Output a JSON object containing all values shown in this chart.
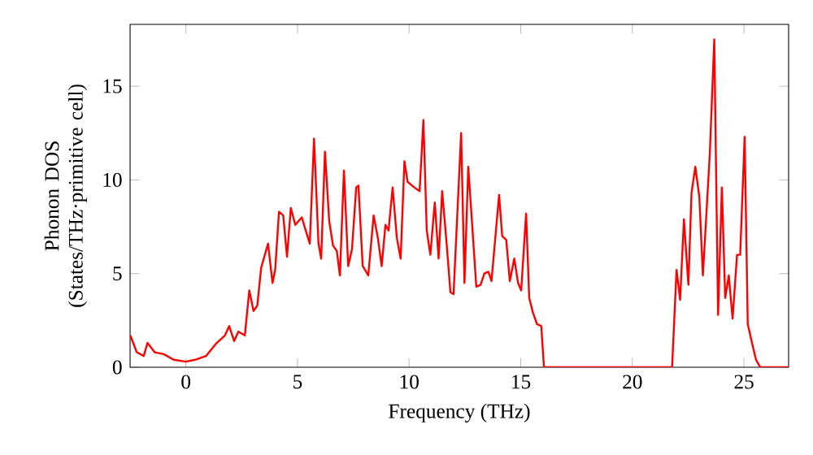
{
  "chart_data": {
    "type": "line",
    "xlabel": "Frequency (THz)",
    "ylabel": "Phonon DOS (States/THz·primitive cell)",
    "xlim": [
      -2.5,
      27
    ],
    "ylim": [
      0,
      18.3
    ],
    "xticks": [
      0,
      5,
      10,
      15,
      20,
      25
    ],
    "yticks": [
      0,
      5,
      10,
      15
    ],
    "marker": "none",
    "line_style": "solid",
    "series": [
      {
        "color": "#ff0000",
        "x": [
          -2.49,
          -2.2,
          -1.89,
          -1.72,
          -1.4,
          -0.99,
          -0.55,
          0,
          0.41,
          0.9,
          1.38,
          1.75,
          1.94,
          2.16,
          2.35,
          2.64,
          2.84,
          3.03,
          3.2,
          3.37,
          3.68,
          3.88,
          4.0,
          4.17,
          4.36,
          4.53,
          4.7,
          4.9,
          5.19,
          5.55,
          5.74,
          5.94,
          6.06,
          6.23,
          6.42,
          6.59,
          6.76,
          6.9,
          7.08,
          7.27,
          7.44,
          7.63,
          7.73,
          7.92,
          8.17,
          8.41,
          8.6,
          8.77,
          8.94,
          9.08,
          9.26,
          9.45,
          9.62,
          9.79,
          9.93,
          10.23,
          10.47,
          10.64,
          10.79,
          10.95,
          11.15,
          11.32,
          11.48,
          11.68,
          11.85,
          11.99,
          12.33,
          12.48,
          12.65,
          13.01,
          13.2,
          13.37,
          13.55,
          13.69,
          14.03,
          14.17,
          14.35,
          14.51,
          14.71,
          14.88,
          15.02,
          15.24,
          15.38,
          15.55,
          15.73,
          15.92,
          16.04,
          21.78,
          21.98,
          22.14,
          22.31,
          22.51,
          22.65,
          22.82,
          23.0,
          23.16,
          23.47,
          23.67,
          23.84,
          24.01,
          24.16,
          24.32,
          24.49,
          24.69,
          24.83,
          25.03,
          25.17,
          25.36,
          25.54,
          25.73,
          27
        ],
        "values": [
          1.7,
          0.8,
          0.6,
          1.3,
          0.8,
          0.7,
          0.4,
          0.3,
          0.4,
          0.6,
          1.3,
          1.7,
          2.2,
          1.4,
          1.9,
          1.7,
          4.1,
          3.0,
          3.3,
          5.3,
          6.6,
          4.5,
          5.2,
          8.3,
          8.1,
          5.9,
          8.5,
          7.6,
          8.0,
          6.6,
          12.2,
          6.6,
          5.8,
          11.5,
          7.8,
          6.5,
          6.2,
          4.9,
          10.5,
          5.4,
          6.3,
          9.6,
          9.7,
          5.4,
          4.9,
          8.1,
          6.9,
          5.4,
          7.6,
          7.3,
          9.6,
          6.9,
          5.8,
          11.0,
          9.9,
          9.6,
          9.4,
          13.2,
          7.3,
          6.0,
          8.8,
          5.8,
          9.4,
          6.6,
          4.0,
          3.9,
          12.5,
          4.5,
          10.7,
          4.3,
          4.4,
          5.0,
          5.1,
          4.6,
          9.2,
          7.0,
          6.8,
          4.6,
          5.8,
          4.5,
          4.1,
          8.2,
          3.7,
          2.9,
          2.3,
          2.2,
          0,
          0,
          5.2,
          3.6,
          7.9,
          4.4,
          9.3,
          10.7,
          9.1,
          4.9,
          11.4,
          17.5,
          2.8,
          9.6,
          3.7,
          4.9,
          2.6,
          6.0,
          6.0,
          12.3,
          2.3,
          1.3,
          0.4,
          0,
          0
        ]
      }
    ]
  }
}
